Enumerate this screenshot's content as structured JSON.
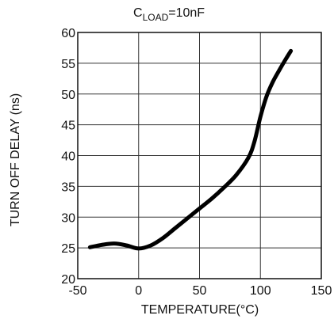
{
  "chart_data": {
    "type": "line",
    "title_main": "C",
    "title_sub": "LOAD",
    "title_rest": "=10nF",
    "xlabel": "TEMPERATURE(°C)",
    "ylabel": "TURN OFF DELAY (ns)",
    "xlim": [
      -50,
      150
    ],
    "ylim": [
      20,
      60
    ],
    "xticks": [
      -50,
      0,
      50,
      100,
      150
    ],
    "yticks": [
      20,
      25,
      30,
      35,
      40,
      45,
      50,
      55,
      60
    ],
    "grid": true,
    "series": [
      {
        "x": [
          -40,
          -30,
          -20,
          -10,
          0,
          10,
          20,
          30,
          40,
          50,
          60,
          70,
          80,
          90,
          95,
          100,
          105,
          110,
          115,
          120,
          125
        ],
        "y": [
          25.1,
          25.5,
          25.7,
          25.4,
          24.9,
          25.4,
          26.6,
          28.2,
          29.8,
          31.4,
          33.0,
          34.8,
          36.8,
          39.6,
          42.2,
          46.3,
          49.6,
          51.9,
          53.7,
          55.4,
          57.0
        ]
      }
    ]
  }
}
